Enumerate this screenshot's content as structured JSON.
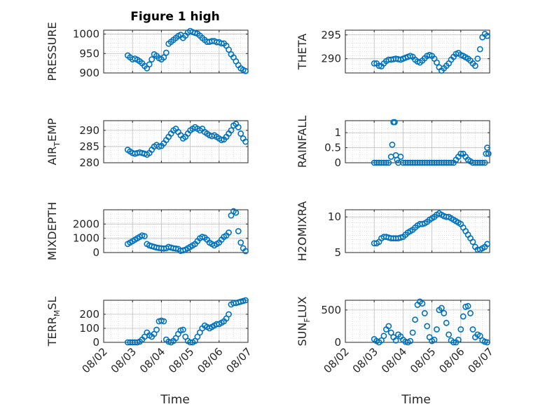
{
  "figure": {
    "title": "Figure 1 high",
    "marker_color": "#0072BD",
    "x_time_label": "Time",
    "x_ticks": [
      "08/02",
      "08/03",
      "08/04",
      "08/05",
      "08/06",
      "08/07"
    ],
    "x_range_days": [
      "08/02",
      "08/07"
    ]
  },
  "chart_data": [
    {
      "type": "scatter",
      "marker": "circle",
      "ylabel": "PRESSURE",
      "ylim": [
        900,
        1010
      ],
      "yticks": [
        900,
        950,
        1000
      ],
      "grid": true,
      "x": [
        "08/02 20:00",
        "08/02 22:00",
        "08/03 00:00",
        "08/03 02:00",
        "08/03 04:00",
        "08/03 06:00",
        "08/03 08:00",
        "08/03 10:00",
        "08/03 12:00",
        "08/03 14:00",
        "08/03 16:00",
        "08/03 18:00",
        "08/03 20:00",
        "08/03 22:00",
        "08/04 00:00",
        "08/04 02:00",
        "08/04 04:00",
        "08/04 06:00",
        "08/04 08:00",
        "08/04 10:00",
        "08/04 12:00",
        "08/04 14:00",
        "08/04 16:00",
        "08/04 18:00",
        "08/04 20:00",
        "08/04 22:00",
        "08/05 00:00",
        "08/05 02:00",
        "08/05 04:00",
        "08/05 06:00",
        "08/05 08:00",
        "08/05 10:00",
        "08/05 12:00",
        "08/05 14:00",
        "08/05 16:00",
        "08/05 18:00",
        "08/05 20:00",
        "08/05 22:00",
        "08/06 00:00",
        "08/06 02:00",
        "08/06 04:00",
        "08/06 06:00",
        "08/06 08:00",
        "08/06 10:00",
        "08/06 12:00",
        "08/06 14:00",
        "08/06 16:00",
        "08/06 18:00",
        "08/06 20:00",
        "08/06 22:00"
      ],
      "y": [
        945,
        940,
        935,
        937,
        934,
        930,
        925,
        918,
        912,
        922,
        935,
        948,
        944,
        938,
        935,
        940,
        952,
        975,
        980,
        985,
        990,
        995,
        998,
        990,
        996,
        1004,
        1008,
        1005,
        1003,
        1001,
        996,
        990,
        985,
        980,
        980,
        982,
        982,
        979,
        979,
        976,
        976,
        970,
        960,
        948,
        940,
        930,
        920,
        912,
        908,
        905
      ]
    },
    {
      "type": "scatter",
      "marker": "circle",
      "ylabel": "THETA",
      "ylim": [
        287,
        296
      ],
      "yticks": [
        290,
        295
      ],
      "grid": true,
      "x": [
        "08/03 00:00",
        "08/03 02:00",
        "08/03 04:00",
        "08/03 06:00",
        "08/03 08:00",
        "08/03 10:00",
        "08/03 12:00",
        "08/03 14:00",
        "08/03 16:00",
        "08/03 18:00",
        "08/03 20:00",
        "08/03 22:00",
        "08/04 00:00",
        "08/04 02:00",
        "08/04 04:00",
        "08/04 06:00",
        "08/04 08:00",
        "08/04 10:00",
        "08/04 12:00",
        "08/04 14:00",
        "08/04 16:00",
        "08/04 18:00",
        "08/04 20:00",
        "08/04 22:00",
        "08/05 00:00",
        "08/05 02:00",
        "08/05 04:00",
        "08/05 06:00",
        "08/05 08:00",
        "08/05 10:00",
        "08/05 12:00",
        "08/05 14:00",
        "08/05 16:00",
        "08/05 18:00",
        "08/05 20:00",
        "08/05 22:00",
        "08/06 00:00",
        "08/06 02:00",
        "08/06 04:00",
        "08/06 06:00",
        "08/06 08:00",
        "08/06 10:00",
        "08/06 12:00",
        "08/06 14:00",
        "08/06 16:00",
        "08/06 18:00",
        "08/06 20:00",
        "08/06 22:00"
      ],
      "y": [
        289,
        289,
        288.5,
        288.4,
        289,
        289.5,
        289.8,
        289.8,
        289.9,
        290,
        289.9,
        289.8,
        290,
        290.2,
        290.4,
        290.6,
        290.4,
        289.8,
        289.4,
        289.2,
        289.6,
        290.1,
        290.6,
        290.8,
        290.6,
        290,
        289.2,
        288.2,
        287.5,
        288,
        288.5,
        289,
        289.8,
        290.4,
        291,
        291.2,
        290.8,
        290.6,
        290.3,
        290,
        289.6,
        289,
        288.5,
        290,
        292,
        294.5,
        295.2,
        294.8
      ]
    },
    {
      "type": "scatter",
      "marker": "circle",
      "ylabel": "AIR_TEMP",
      "ylim": [
        280,
        293
      ],
      "yticks": [
        280,
        285,
        290
      ],
      "grid": true,
      "x": [
        "08/02 20:00",
        "08/02 22:00",
        "08/03 00:00",
        "08/03 02:00",
        "08/03 04:00",
        "08/03 06:00",
        "08/03 08:00",
        "08/03 10:00",
        "08/03 12:00",
        "08/03 14:00",
        "08/03 16:00",
        "08/03 18:00",
        "08/03 20:00",
        "08/03 22:00",
        "08/04 00:00",
        "08/04 02:00",
        "08/04 04:00",
        "08/04 06:00",
        "08/04 08:00",
        "08/04 10:00",
        "08/04 12:00",
        "08/04 14:00",
        "08/04 16:00",
        "08/04 18:00",
        "08/04 20:00",
        "08/04 22:00",
        "08/05 00:00",
        "08/05 02:00",
        "08/05 04:00",
        "08/05 06:00",
        "08/05 08:00",
        "08/05 10:00",
        "08/05 12:00",
        "08/05 14:00",
        "08/05 16:00",
        "08/05 18:00",
        "08/05 20:00",
        "08/05 22:00",
        "08/06 00:00",
        "08/06 02:00",
        "08/06 04:00",
        "08/06 06:00",
        "08/06 08:00",
        "08/06 10:00",
        "08/06 12:00",
        "08/06 14:00",
        "08/06 16:00",
        "08/06 18:00",
        "08/06 20:00",
        "08/06 22:00"
      ],
      "y": [
        284,
        283.5,
        283,
        282.8,
        283,
        283.2,
        283,
        282.8,
        282.5,
        283,
        284,
        285,
        285.5,
        285,
        285.2,
        286,
        287,
        288,
        289,
        290,
        290.5,
        289.5,
        288.5,
        287.5,
        288,
        289,
        290,
        290.5,
        291,
        290.5,
        290,
        290.5,
        289.5,
        289,
        288.5,
        288.2,
        288.5,
        288,
        287.5,
        287,
        287.2,
        288,
        289,
        290,
        291.5,
        292,
        291,
        289,
        287.5,
        286.5
      ]
    },
    {
      "type": "scatter",
      "marker": "circle",
      "ylabel": "RAINFALL",
      "ylim": [
        0,
        1.4
      ],
      "yticks": [
        0,
        0.5,
        1
      ],
      "grid": true,
      "x": [
        "08/03 00:00",
        "08/03 02:00",
        "08/03 04:00",
        "08/03 06:00",
        "08/03 08:00",
        "08/03 10:00",
        "08/03 12:00",
        "08/03 14:00",
        "08/03 15:00",
        "08/03 16:00",
        "08/03 17:00",
        "08/03 18:00",
        "08/03 19:00",
        "08/03 20:00",
        "08/03 22:00",
        "08/04 00:00",
        "08/04 02:00",
        "08/04 04:00",
        "08/04 06:00",
        "08/04 08:00",
        "08/04 10:00",
        "08/04 12:00",
        "08/04 14:00",
        "08/04 16:00",
        "08/04 18:00",
        "08/04 20:00",
        "08/04 22:00",
        "08/05 00:00",
        "08/05 02:00",
        "08/05 04:00",
        "08/05 06:00",
        "08/05 08:00",
        "08/05 10:00",
        "08/05 12:00",
        "08/05 14:00",
        "08/05 16:00",
        "08/05 18:00",
        "08/05 20:00",
        "08/05 22:00",
        "08/06 00:00",
        "08/06 02:00",
        "08/06 04:00",
        "08/06 06:00",
        "08/06 08:00",
        "08/06 10:00",
        "08/06 12:00",
        "08/06 14:00",
        "08/06 16:00",
        "08/06 18:00",
        "08/06 20:00",
        "08/06 21:00",
        "08/06 22:00",
        "08/06 23:00"
      ],
      "y": [
        0,
        0,
        0,
        0,
        0,
        0,
        0,
        0.2,
        0.6,
        1.35,
        1.35,
        0.25,
        0.1,
        0,
        0.2,
        0,
        0,
        0,
        0,
        0,
        0,
        0,
        0,
        0,
        0,
        0,
        0,
        0,
        0,
        0,
        0,
        0,
        0,
        0,
        0,
        0,
        0,
        0.1,
        0.2,
        0.3,
        0.3,
        0.2,
        0.1,
        0.05,
        0,
        0,
        0,
        0,
        0,
        0,
        0.3,
        0.5,
        0.3
      ]
    },
    {
      "type": "scatter",
      "marker": "circle",
      "ylabel": "MIXDEPTH",
      "ylim": [
        0,
        3000
      ],
      "yticks": [
        0,
        1000,
        2000
      ],
      "grid": true,
      "x": [
        "08/02 20:00",
        "08/02 22:00",
        "08/03 00:00",
        "08/03 02:00",
        "08/03 04:00",
        "08/03 06:00",
        "08/03 08:00",
        "08/03 10:00",
        "08/03 12:00",
        "08/03 14:00",
        "08/03 16:00",
        "08/03 18:00",
        "08/03 20:00",
        "08/03 22:00",
        "08/04 00:00",
        "08/04 02:00",
        "08/04 04:00",
        "08/04 06:00",
        "08/04 08:00",
        "08/04 10:00",
        "08/04 12:00",
        "08/04 14:00",
        "08/04 16:00",
        "08/04 18:00",
        "08/04 20:00",
        "08/04 22:00",
        "08/05 00:00",
        "08/05 02:00",
        "08/05 04:00",
        "08/05 06:00",
        "08/05 08:00",
        "08/05 10:00",
        "08/05 12:00",
        "08/05 14:00",
        "08/05 16:00",
        "08/05 18:00",
        "08/05 20:00",
        "08/05 22:00",
        "08/06 00:00",
        "08/06 02:00",
        "08/06 04:00",
        "08/06 06:00",
        "08/06 08:00",
        "08/06 10:00",
        "08/06 12:00",
        "08/06 14:00",
        "08/06 16:00",
        "08/06 18:00",
        "08/06 20:00",
        "08/06 22:00"
      ],
      "y": [
        600,
        700,
        800,
        900,
        1000,
        1100,
        1200,
        1150,
        600,
        500,
        450,
        400,
        350,
        320,
        300,
        280,
        300,
        400,
        350,
        300,
        280,
        250,
        120,
        150,
        200,
        300,
        400,
        500,
        600,
        800,
        1000,
        1100,
        1050,
        900,
        700,
        600,
        500,
        600,
        700,
        900,
        1100,
        1200,
        1400,
        2600,
        2900,
        2800,
        1500,
        700,
        300,
        100
      ]
    },
    {
      "type": "scatter",
      "marker": "circle",
      "ylabel": "H2OMIXRA",
      "ylim": [
        5,
        11
      ],
      "yticks": [
        5,
        10
      ],
      "grid": true,
      "x": [
        "08/03 00:00",
        "08/03 02:00",
        "08/03 04:00",
        "08/03 06:00",
        "08/03 08:00",
        "08/03 10:00",
        "08/03 12:00",
        "08/03 14:00",
        "08/03 16:00",
        "08/03 18:00",
        "08/03 20:00",
        "08/03 22:00",
        "08/04 00:00",
        "08/04 02:00",
        "08/04 04:00",
        "08/04 06:00",
        "08/04 08:00",
        "08/04 10:00",
        "08/04 12:00",
        "08/04 14:00",
        "08/04 16:00",
        "08/04 18:00",
        "08/04 20:00",
        "08/04 22:00",
        "08/05 00:00",
        "08/05 02:00",
        "08/05 04:00",
        "08/05 06:00",
        "08/05 08:00",
        "08/05 10:00",
        "08/05 12:00",
        "08/05 14:00",
        "08/05 16:00",
        "08/05 18:00",
        "08/05 20:00",
        "08/05 22:00",
        "08/06 00:00",
        "08/06 02:00",
        "08/06 04:00",
        "08/06 06:00",
        "08/06 08:00",
        "08/06 10:00",
        "08/06 12:00",
        "08/06 14:00",
        "08/06 16:00",
        "08/06 18:00",
        "08/06 20:00",
        "08/06 22:00"
      ],
      "y": [
        6.3,
        6.3,
        6.5,
        7,
        7.2,
        7.2,
        7.1,
        7,
        7,
        7,
        7,
        7.1,
        7.2,
        7.5,
        7.8,
        8,
        8.2,
        8.5,
        8.8,
        9,
        9,
        9.1,
        9.3,
        9.6,
        9.8,
        10,
        10.3,
        10.5,
        10.3,
        10.1,
        10,
        10,
        9.8,
        9.6,
        9.4,
        9.2,
        9,
        8.5,
        8,
        7.5,
        7,
        6.5,
        5.8,
        5.4,
        5.4,
        5.6,
        5.8,
        6.2
      ]
    },
    {
      "type": "scatter",
      "marker": "circle",
      "ylabel": "TERR_MSL",
      "ylim": [
        0,
        300
      ],
      "yticks": [
        0,
        100,
        200
      ],
      "grid": true,
      "x": [
        "08/02 20:00",
        "08/02 22:00",
        "08/03 00:00",
        "08/03 02:00",
        "08/03 04:00",
        "08/03 06:00",
        "08/03 08:00",
        "08/03 10:00",
        "08/03 12:00",
        "08/03 14:00",
        "08/03 16:00",
        "08/03 18:00",
        "08/03 20:00",
        "08/03 22:00",
        "08/04 00:00",
        "08/04 02:00",
        "08/04 04:00",
        "08/04 06:00",
        "08/04 08:00",
        "08/04 10:00",
        "08/04 12:00",
        "08/04 14:00",
        "08/04 16:00",
        "08/04 18:00",
        "08/04 20:00",
        "08/04 22:00",
        "08/05 00:00",
        "08/05 02:00",
        "08/05 04:00",
        "08/05 06:00",
        "08/05 08:00",
        "08/05 10:00",
        "08/05 12:00",
        "08/05 14:00",
        "08/05 16:00",
        "08/05 18:00",
        "08/05 20:00",
        "08/05 22:00",
        "08/06 00:00",
        "08/06 02:00",
        "08/06 04:00",
        "08/06 06:00",
        "08/06 08:00",
        "08/06 10:00",
        "08/06 12:00",
        "08/06 14:00",
        "08/06 16:00",
        "08/06 18:00",
        "08/06 20:00",
        "08/06 22:00"
      ],
      "y": [
        0,
        0,
        0,
        0,
        0,
        5,
        20,
        40,
        70,
        50,
        40,
        60,
        90,
        150,
        155,
        150,
        20,
        5,
        0,
        10,
        30,
        60,
        85,
        90,
        40,
        10,
        0,
        0,
        10,
        40,
        70,
        100,
        120,
        110,
        100,
        110,
        120,
        130,
        130,
        140,
        150,
        170,
        200,
        270,
        280,
        280,
        285,
        290,
        295,
        300
      ]
    },
    {
      "type": "scatter",
      "marker": "circle",
      "ylabel": "SUN_FLUX",
      "ylim": [
        0,
        650
      ],
      "yticks": [
        0,
        500
      ],
      "grid": true,
      "x": [
        "08/03 00:00",
        "08/03 02:00",
        "08/03 04:00",
        "08/03 06:00",
        "08/03 08:00",
        "08/03 10:00",
        "08/03 12:00",
        "08/03 14:00",
        "08/03 16:00",
        "08/03 18:00",
        "08/03 20:00",
        "08/03 22:00",
        "08/04 00:00",
        "08/04 02:00",
        "08/04 04:00",
        "08/04 06:00",
        "08/04 08:00",
        "08/04 10:00",
        "08/04 12:00",
        "08/04 14:00",
        "08/04 16:00",
        "08/04 18:00",
        "08/04 20:00",
        "08/04 22:00",
        "08/05 00:00",
        "08/05 02:00",
        "08/05 04:00",
        "08/05 06:00",
        "08/05 08:00",
        "08/05 10:00",
        "08/05 12:00",
        "08/05 14:00",
        "08/05 16:00",
        "08/05 18:00",
        "08/05 20:00",
        "08/05 22:00",
        "08/06 00:00",
        "08/06 02:00",
        "08/06 04:00",
        "08/06 06:00",
        "08/06 08:00",
        "08/06 10:00",
        "08/06 12:00",
        "08/06 14:00",
        "08/06 16:00",
        "08/06 18:00",
        "08/06 20:00",
        "08/06 22:00"
      ],
      "y": [
        50,
        20,
        0,
        30,
        100,
        200,
        250,
        150,
        80,
        30,
        120,
        90,
        40,
        10,
        0,
        20,
        150,
        350,
        580,
        630,
        600,
        450,
        250,
        80,
        20,
        40,
        200,
        500,
        530,
        450,
        300,
        120,
        30,
        0,
        0,
        40,
        200,
        400,
        550,
        560,
        450,
        200,
        80,
        120,
        100,
        30,
        10,
        0
      ]
    }
  ]
}
